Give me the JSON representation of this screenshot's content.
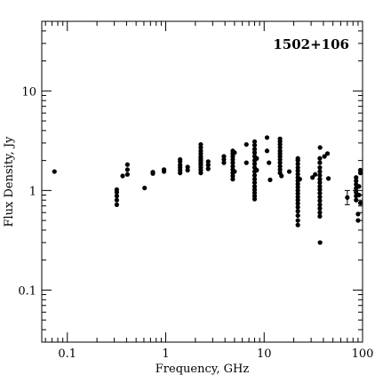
{
  "chart_data": {
    "type": "scatter",
    "title": "1502+106",
    "xlabel": "Frequency, GHz",
    "ylabel": "Flux Density, Jy",
    "xscale": "log",
    "yscale": "log",
    "xlim": [
      0.055,
      100
    ],
    "ylim": [
      0.03,
      50
    ],
    "grid": false,
    "legend": "none",
    "x_ticks": [
      {
        "value": 0.1,
        "label": "0.1"
      },
      {
        "value": 1,
        "label": "1"
      },
      {
        "value": 10,
        "label": "10"
      },
      {
        "value": 100,
        "label": "100"
      }
    ],
    "y_ticks": [
      {
        "value": 0.1,
        "label": "0.1"
      },
      {
        "value": 1,
        "label": "1"
      },
      {
        "value": 10,
        "label": "10"
      }
    ],
    "point_color": "#000000",
    "points": [
      [
        0.074,
        1.55
      ],
      [
        0.318,
        0.72
      ],
      [
        0.318,
        0.8
      ],
      [
        0.318,
        0.88
      ],
      [
        0.318,
        0.96
      ],
      [
        0.318,
        1.02
      ],
      [
        0.365,
        1.4
      ],
      [
        0.408,
        1.45
      ],
      [
        0.408,
        1.62
      ],
      [
        0.408,
        1.82
      ],
      [
        0.61,
        1.06
      ],
      [
        0.74,
        1.48
      ],
      [
        0.74,
        1.53
      ],
      [
        0.96,
        1.55
      ],
      [
        0.96,
        1.62
      ],
      [
        1.4,
        1.5
      ],
      [
        1.4,
        1.6
      ],
      [
        1.4,
        1.7
      ],
      [
        1.4,
        1.8
      ],
      [
        1.4,
        1.95
      ],
      [
        1.4,
        2.05
      ],
      [
        1.67,
        1.6
      ],
      [
        1.67,
        1.72
      ],
      [
        2.27,
        1.5
      ],
      [
        2.27,
        1.6
      ],
      [
        2.27,
        1.7
      ],
      [
        2.27,
        1.8
      ],
      [
        2.27,
        1.9
      ],
      [
        2.27,
        2.0
      ],
      [
        2.27,
        2.1
      ],
      [
        2.27,
        2.2
      ],
      [
        2.27,
        2.35
      ],
      [
        2.27,
        2.5
      ],
      [
        2.27,
        2.7
      ],
      [
        2.27,
        2.9
      ],
      [
        2.7,
        1.65
      ],
      [
        2.7,
        1.8
      ],
      [
        2.7,
        1.95
      ],
      [
        3.9,
        1.9
      ],
      [
        3.9,
        2.05
      ],
      [
        3.9,
        2.2
      ],
      [
        4.8,
        1.3
      ],
      [
        4.8,
        1.4
      ],
      [
        4.8,
        1.5
      ],
      [
        4.8,
        1.62
      ],
      [
        4.8,
        1.75
      ],
      [
        4.8,
        1.9
      ],
      [
        4.8,
        2.05
      ],
      [
        4.8,
        2.2
      ],
      [
        4.8,
        2.35
      ],
      [
        4.8,
        2.5
      ],
      [
        5.0,
        2.4
      ],
      [
        5.0,
        1.55
      ],
      [
        6.6,
        1.9
      ],
      [
        6.6,
        2.9
      ],
      [
        8.0,
        0.82
      ],
      [
        8.0,
        0.88
      ],
      [
        8.0,
        0.95
      ],
      [
        8.0,
        1.02
      ],
      [
        8.0,
        1.1
      ],
      [
        8.0,
        1.2
      ],
      [
        8.0,
        1.3
      ],
      [
        8.0,
        1.42
      ],
      [
        8.0,
        1.55
      ],
      [
        8.0,
        1.7
      ],
      [
        8.0,
        1.85
      ],
      [
        8.0,
        2.0
      ],
      [
        8.0,
        2.2
      ],
      [
        8.0,
        2.4
      ],
      [
        8.0,
        2.6
      ],
      [
        8.0,
        2.85
      ],
      [
        8.0,
        3.1
      ],
      [
        8.4,
        1.6
      ],
      [
        8.4,
        2.1
      ],
      [
        10.7,
        3.4
      ],
      [
        10.7,
        2.5
      ],
      [
        11.2,
        1.9
      ],
      [
        11.5,
        1.28
      ],
      [
        14.5,
        1.5
      ],
      [
        14.5,
        1.62
      ],
      [
        14.5,
        1.75
      ],
      [
        14.5,
        1.9
      ],
      [
        14.5,
        2.05
      ],
      [
        14.5,
        2.2
      ],
      [
        14.5,
        2.35
      ],
      [
        14.5,
        2.5
      ],
      [
        14.5,
        2.7
      ],
      [
        14.5,
        2.9
      ],
      [
        14.5,
        3.1
      ],
      [
        14.5,
        3.3
      ],
      [
        15.0,
        1.4
      ],
      [
        18.0,
        1.55
      ],
      [
        22.0,
        0.45
      ],
      [
        22.0,
        0.5
      ],
      [
        22.0,
        0.56
      ],
      [
        22.0,
        0.62
      ],
      [
        22.0,
        0.68
      ],
      [
        22.0,
        0.74
      ],
      [
        22.0,
        0.8
      ],
      [
        22.0,
        0.86
      ],
      [
        22.0,
        0.93
      ],
      [
        22.0,
        1.0
      ],
      [
        22.0,
        1.08
      ],
      [
        22.0,
        1.16
      ],
      [
        22.0,
        1.25
      ],
      [
        22.0,
        1.35
      ],
      [
        22.0,
        1.46
      ],
      [
        22.0,
        1.58
      ],
      [
        22.0,
        1.7
      ],
      [
        22.0,
        1.85
      ],
      [
        22.0,
        2.0
      ],
      [
        22.0,
        2.1
      ],
      [
        23.0,
        1.3
      ],
      [
        31.0,
        1.35
      ],
      [
        33.0,
        1.45
      ],
      [
        36.8,
        0.55
      ],
      [
        36.8,
        0.6
      ],
      [
        36.8,
        0.66
      ],
      [
        36.8,
        0.72
      ],
      [
        36.8,
        0.79
      ],
      [
        36.8,
        0.86
      ],
      [
        36.8,
        0.94
      ],
      [
        36.8,
        1.02
      ],
      [
        36.8,
        1.1
      ],
      [
        36.8,
        1.2
      ],
      [
        36.8,
        1.3
      ],
      [
        36.8,
        1.42
      ],
      [
        36.8,
        1.55
      ],
      [
        36.8,
        1.7
      ],
      [
        36.8,
        1.9
      ],
      [
        36.8,
        2.1
      ],
      [
        37.0,
        0.3
      ],
      [
        37.0,
        2.7
      ],
      [
        41.0,
        2.2
      ],
      [
        44.0,
        2.35
      ],
      [
        45.0,
        1.32
      ],
      [
        70.0,
        0.85
      ],
      [
        86.0,
        0.8
      ],
      [
        86.0,
        0.88
      ],
      [
        86.0,
        0.96
      ],
      [
        86.0,
        1.05
      ],
      [
        86.0,
        1.15
      ],
      [
        86.0,
        1.25
      ],
      [
        86.0,
        1.35
      ],
      [
        90.0,
        0.5
      ],
      [
        90.0,
        0.58
      ],
      [
        92.0,
        0.9
      ],
      [
        92.0,
        1.1
      ],
      [
        95.0,
        0.75
      ],
      [
        95.0,
        1.5
      ],
      [
        95.0,
        1.6
      ]
    ],
    "error_bars": [
      {
        "x": 70.0,
        "y": 0.85,
        "ylow": 0.72,
        "yhigh": 1.0
      }
    ]
  }
}
